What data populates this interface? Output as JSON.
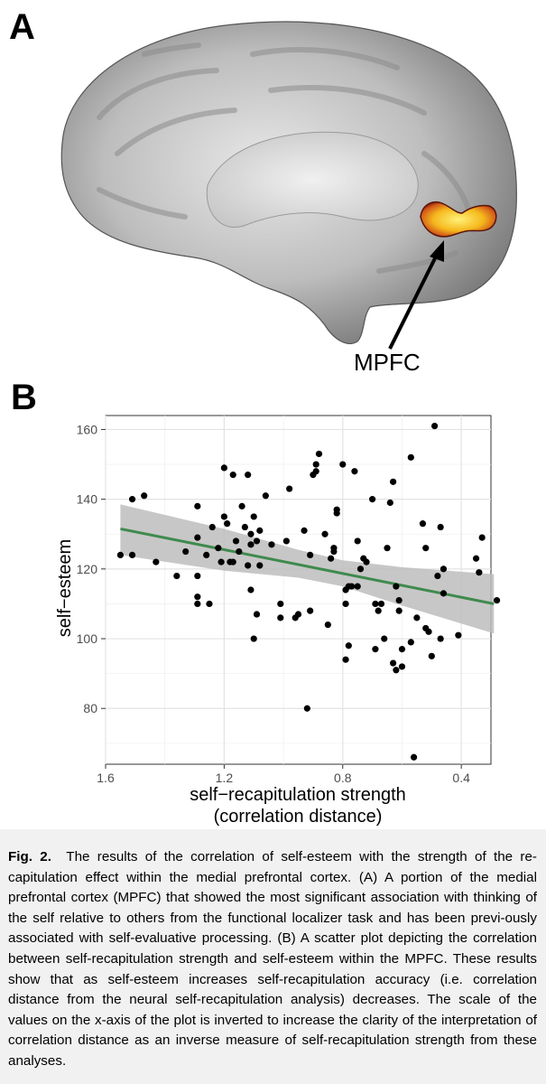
{
  "panel_a": {
    "label": "A",
    "region_label": "MPFC"
  },
  "panel_b": {
    "label": "B"
  },
  "chart_data": {
    "type": "scatter",
    "xlabel_line1": "self−recapitulation strength",
    "xlabel_line2": "(correlation distance)",
    "ylabel": "self−esteem",
    "x_reversed": true,
    "xlim": [
      1.6,
      0.3
    ],
    "ylim": [
      64,
      164
    ],
    "x_ticks": [
      1.6,
      1.2,
      0.8,
      0.4
    ],
    "x_tick_labels": [
      "1.6",
      "1.2",
      "0.8",
      "0.4"
    ],
    "y_ticks": [
      80,
      100,
      120,
      140,
      160
    ],
    "y_tick_labels": [
      "80",
      "100",
      "120",
      "140",
      "160"
    ],
    "grid": true,
    "fit_line": {
      "color": "#3f8a4d",
      "x": [
        1.55,
        0.29
      ],
      "y": [
        131.5,
        110.0
      ]
    },
    "confidence_band": {
      "color": "#bdbdbd",
      "upper": [
        [
          1.55,
          138.5
        ],
        [
          1.2,
          131.5
        ],
        [
          0.95,
          125.5
        ],
        [
          0.8,
          122.5
        ],
        [
          0.6,
          120.5
        ],
        [
          0.29,
          118.5
        ]
      ],
      "lower": [
        [
          1.55,
          124.0
        ],
        [
          1.2,
          119.5
        ],
        [
          0.95,
          117.5
        ],
        [
          0.8,
          115.0
        ],
        [
          0.6,
          109.5
        ],
        [
          0.29,
          101.5
        ]
      ]
    },
    "points": [
      {
        "x": 1.55,
        "y": 124
      },
      {
        "x": 1.51,
        "y": 140
      },
      {
        "x": 1.51,
        "y": 124
      },
      {
        "x": 1.47,
        "y": 141
      },
      {
        "x": 1.43,
        "y": 122
      },
      {
        "x": 1.36,
        "y": 118
      },
      {
        "x": 1.33,
        "y": 125
      },
      {
        "x": 1.29,
        "y": 138
      },
      {
        "x": 1.29,
        "y": 129
      },
      {
        "x": 1.29,
        "y": 118
      },
      {
        "x": 1.29,
        "y": 112
      },
      {
        "x": 1.29,
        "y": 110
      },
      {
        "x": 1.26,
        "y": 124
      },
      {
        "x": 1.25,
        "y": 110
      },
      {
        "x": 1.24,
        "y": 132
      },
      {
        "x": 1.22,
        "y": 126
      },
      {
        "x": 1.21,
        "y": 122
      },
      {
        "x": 1.2,
        "y": 135
      },
      {
        "x": 1.2,
        "y": 149
      },
      {
        "x": 1.19,
        "y": 133
      },
      {
        "x": 1.18,
        "y": 122
      },
      {
        "x": 1.17,
        "y": 122
      },
      {
        "x": 1.17,
        "y": 147
      },
      {
        "x": 1.16,
        "y": 128
      },
      {
        "x": 1.15,
        "y": 125
      },
      {
        "x": 1.14,
        "y": 138
      },
      {
        "x": 1.13,
        "y": 132
      },
      {
        "x": 1.12,
        "y": 121
      },
      {
        "x": 1.12,
        "y": 147
      },
      {
        "x": 1.11,
        "y": 114
      },
      {
        "x": 1.11,
        "y": 130
      },
      {
        "x": 1.11,
        "y": 127
      },
      {
        "x": 1.1,
        "y": 100
      },
      {
        "x": 1.1,
        "y": 135
      },
      {
        "x": 1.09,
        "y": 128
      },
      {
        "x": 1.09,
        "y": 107
      },
      {
        "x": 1.08,
        "y": 121
      },
      {
        "x": 1.08,
        "y": 131
      },
      {
        "x": 1.06,
        "y": 141
      },
      {
        "x": 1.04,
        "y": 127
      },
      {
        "x": 1.01,
        "y": 110
      },
      {
        "x": 1.01,
        "y": 106
      },
      {
        "x": 0.99,
        "y": 128
      },
      {
        "x": 0.98,
        "y": 143
      },
      {
        "x": 0.96,
        "y": 106
      },
      {
        "x": 0.95,
        "y": 107
      },
      {
        "x": 0.93,
        "y": 131
      },
      {
        "x": 0.92,
        "y": 80
      },
      {
        "x": 0.91,
        "y": 108
      },
      {
        "x": 0.91,
        "y": 124
      },
      {
        "x": 0.9,
        "y": 147
      },
      {
        "x": 0.89,
        "y": 150
      },
      {
        "x": 0.89,
        "y": 148
      },
      {
        "x": 0.88,
        "y": 153
      },
      {
        "x": 0.86,
        "y": 130
      },
      {
        "x": 0.85,
        "y": 104
      },
      {
        "x": 0.84,
        "y": 123
      },
      {
        "x": 0.83,
        "y": 126
      },
      {
        "x": 0.83,
        "y": 125
      },
      {
        "x": 0.82,
        "y": 137
      },
      {
        "x": 0.82,
        "y": 136
      },
      {
        "x": 0.8,
        "y": 150
      },
      {
        "x": 0.79,
        "y": 114
      },
      {
        "x": 0.79,
        "y": 110
      },
      {
        "x": 0.79,
        "y": 94
      },
      {
        "x": 0.78,
        "y": 98
      },
      {
        "x": 0.78,
        "y": 115
      },
      {
        "x": 0.77,
        "y": 115
      },
      {
        "x": 0.76,
        "y": 148
      },
      {
        "x": 0.75,
        "y": 115
      },
      {
        "x": 0.75,
        "y": 128
      },
      {
        "x": 0.74,
        "y": 120
      },
      {
        "x": 0.73,
        "y": 123
      },
      {
        "x": 0.72,
        "y": 122
      },
      {
        "x": 0.7,
        "y": 140
      },
      {
        "x": 0.69,
        "y": 97
      },
      {
        "x": 0.69,
        "y": 110
      },
      {
        "x": 0.68,
        "y": 108
      },
      {
        "x": 0.67,
        "y": 110
      },
      {
        "x": 0.66,
        "y": 100
      },
      {
        "x": 0.65,
        "y": 126
      },
      {
        "x": 0.64,
        "y": 139
      },
      {
        "x": 0.63,
        "y": 145
      },
      {
        "x": 0.63,
        "y": 93
      },
      {
        "x": 0.62,
        "y": 115
      },
      {
        "x": 0.62,
        "y": 91
      },
      {
        "x": 0.61,
        "y": 111
      },
      {
        "x": 0.61,
        "y": 108
      },
      {
        "x": 0.6,
        "y": 92
      },
      {
        "x": 0.6,
        "y": 97
      },
      {
        "x": 0.57,
        "y": 152
      },
      {
        "x": 0.57,
        "y": 99
      },
      {
        "x": 0.56,
        "y": 66
      },
      {
        "x": 0.55,
        "y": 106
      },
      {
        "x": 0.53,
        "y": 133
      },
      {
        "x": 0.52,
        "y": 126
      },
      {
        "x": 0.52,
        "y": 103
      },
      {
        "x": 0.51,
        "y": 102
      },
      {
        "x": 0.5,
        "y": 95
      },
      {
        "x": 0.49,
        "y": 161
      },
      {
        "x": 0.48,
        "y": 118
      },
      {
        "x": 0.47,
        "y": 132
      },
      {
        "x": 0.47,
        "y": 100
      },
      {
        "x": 0.46,
        "y": 113
      },
      {
        "x": 0.46,
        "y": 120
      },
      {
        "x": 0.41,
        "y": 101
      },
      {
        "x": 0.35,
        "y": 123
      },
      {
        "x": 0.34,
        "y": 119
      },
      {
        "x": 0.33,
        "y": 129
      },
      {
        "x": 0.28,
        "y": 111
      }
    ]
  },
  "caption": {
    "label": "Fig. 2.",
    "text": "The results of the correlation of self-esteem with the strength of the re-capitulation effect within the medial prefrontal cortex.  (A) A portion of the medial prefrontal cortex (MPFC) that showed the most significant association with thinking of the self relative to others from the functional localizer task and has been previ-ously associated with self-evaluative processing.  (B) A scatter plot depicting the correlation between self-recapitulation strength and self-esteem within the MPFC.  These results show that as self-esteem increases self-recapitulation accuracy (i.e. correlation distance from the neural self-recapitulation analysis) decreases.  The scale of the values on the x-axis of the plot is inverted to increase the clarity of the interpretation of correlation distance as an inverse measure of self-recapitulation strength from these analyses."
  }
}
